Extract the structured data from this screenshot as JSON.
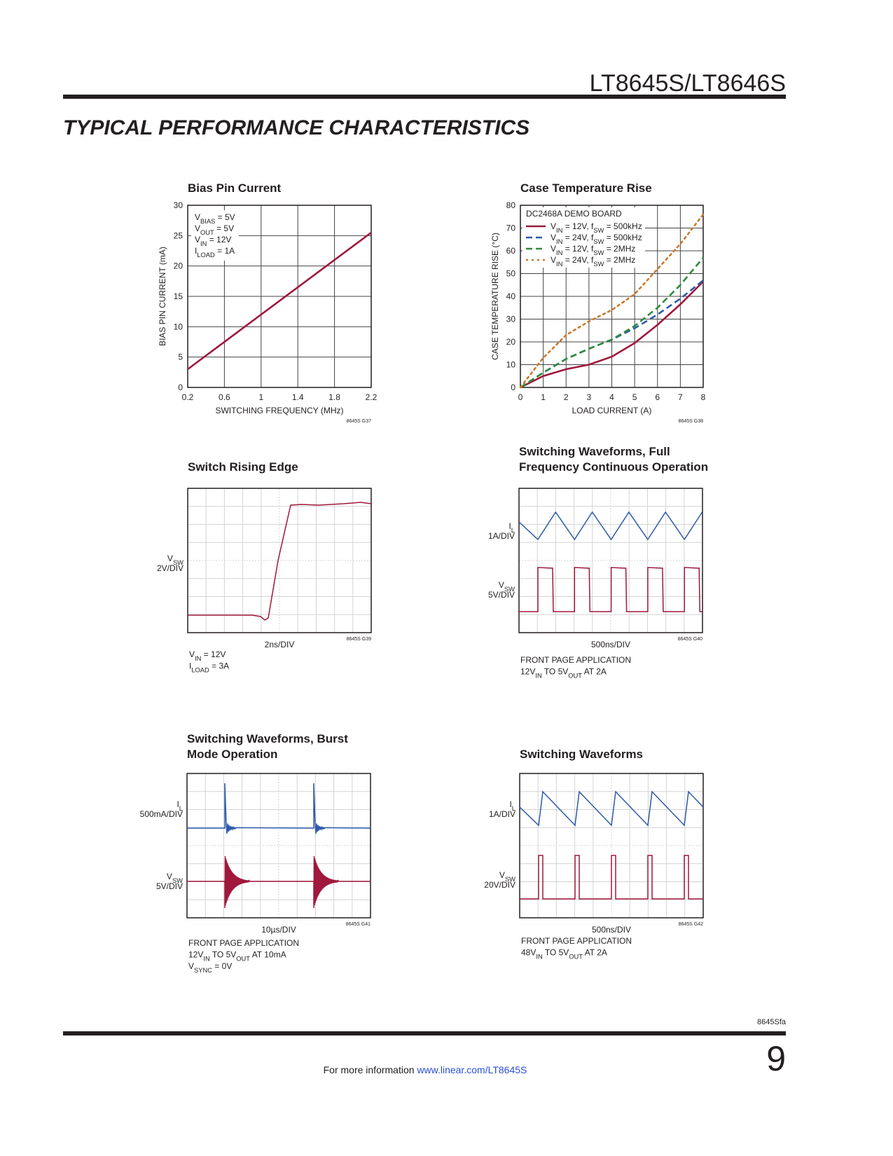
{
  "header": {
    "part": "LT8645S/LT8646S",
    "section": "TYPICAL PERFORMANCE CHARACTERISTICS"
  },
  "chart_data": [
    {
      "type": "line",
      "title": "Bias Pin Current",
      "x_label": "SWITCHING FREQUENCY (MHz)",
      "y_label": "BIAS PIN CURRENT (mA)",
      "code": "8645S G37",
      "xlim": [
        0.2,
        2.2
      ],
      "xticks": [
        0.2,
        0.6,
        1,
        1.4,
        1.8,
        2.2
      ],
      "ylim": [
        0,
        30
      ],
      "yticks": [
        0,
        5,
        10,
        15,
        20,
        25,
        30
      ],
      "grid": true,
      "x": [
        0.2,
        2.2
      ],
      "annotations": [
        [
          "V",
          "BIAS",
          " = 5V"
        ],
        [
          "V",
          "OUT",
          " = 5V"
        ],
        [
          "V",
          "IN",
          " = 12V"
        ],
        [
          "I",
          "LOAD",
          " = 1A"
        ]
      ],
      "series": [
        {
          "color": "#a0183c",
          "dash": "solid",
          "values": [
            3,
            25.5
          ]
        }
      ]
    },
    {
      "type": "line",
      "title": "Case Temperature Rise",
      "x_label": "LOAD CURRENT (A)",
      "y_label": "CASE TEMPERATURE RISE (°C)",
      "code": "8645S G38",
      "xlim": [
        0,
        8
      ],
      "xticks": [
        0,
        1,
        2,
        3,
        4,
        5,
        6,
        7,
        8
      ],
      "ylim": [
        0,
        80
      ],
      "yticks": [
        0,
        10,
        20,
        30,
        40,
        50,
        60,
        70,
        80
      ],
      "grid": true,
      "legend_title": "DC2468A DEMO BOARD",
      "legend": "upper-left",
      "x": [
        0,
        1,
        2,
        3,
        4,
        5,
        6,
        7,
        8
      ],
      "series": [
        {
          "name": [
            "V",
            "IN",
            " = 12V, f",
            "SW",
            " = 500kHz"
          ],
          "color": "#a0183c",
          "dash": "solid",
          "values": [
            0,
            5,
            8,
            10,
            13.5,
            19.5,
            27.5,
            36.5,
            46.5
          ]
        },
        {
          "name": [
            "V",
            "IN",
            " = 24V, f",
            "SW",
            " = 500kHz"
          ],
          "color": "#2f5aa8",
          "dash": "dashed",
          "values": [
            0,
            6.5,
            12.5,
            17,
            21,
            26,
            32,
            39,
            47
          ]
        },
        {
          "name": [
            "V",
            "IN",
            " = 12V, f",
            "SW",
            " = 2MHz"
          ],
          "color": "#2e8b3e",
          "dash": "dashed",
          "values": [
            0,
            6.5,
            12.5,
            17,
            21,
            27,
            35,
            45,
            57
          ]
        },
        {
          "name": [
            "V",
            "IN",
            " = 24V, f",
            "SW",
            " = 2MHz"
          ],
          "color": "#c87a2a",
          "dash": "dotted",
          "values": [
            0,
            13,
            23,
            29,
            34,
            41,
            52,
            63,
            76
          ]
        }
      ]
    }
  ],
  "scopes": [
    {
      "title": [
        "Switch Rising Edge"
      ],
      "channels": [
        {
          "label": [
            "V",
            "SW"
          ],
          "scale": "2V/DIV"
        }
      ],
      "timebase": "2ns/DIV",
      "code": "8645S G39",
      "notes": [
        [
          "V",
          "IN",
          " = 12V"
        ],
        [
          "I",
          "LOAD",
          " = 3A"
        ]
      ]
    },
    {
      "title": [
        "Switching Waveforms, Full",
        "Frequency Continuous Operation"
      ],
      "channels": [
        {
          "label": [
            "I",
            "L"
          ],
          "scale": "1A/DIV"
        },
        {
          "label": [
            "V",
            "SW"
          ],
          "scale": "5V/DIV"
        }
      ],
      "timebase": "500ns/DIV",
      "code": "8645S G40",
      "notes": [
        [
          "FRONT PAGE APPLICATION"
        ],
        [
          "12V",
          "IN",
          " TO 5V",
          "OUT",
          " AT 2A"
        ]
      ]
    },
    {
      "title": [
        "Switching Waveforms, Burst",
        "Mode Operation"
      ],
      "channels": [
        {
          "label": [
            "I",
            "L"
          ],
          "scale": "500mA/DIV"
        },
        {
          "label": [
            "V",
            "SW"
          ],
          "scale": "5V/DIV"
        }
      ],
      "timebase": "10µs/DIV",
      "code": "8645S G41",
      "notes": [
        [
          "FRONT PAGE APPLICATION"
        ],
        [
          "12V",
          "IN",
          " TO 5V",
          "OUT",
          " AT 10mA"
        ],
        [
          "V",
          "SYNC",
          " = 0V"
        ]
      ]
    },
    {
      "title": [
        "Switching Waveforms"
      ],
      "channels": [
        {
          "label": [
            "I",
            "L"
          ],
          "scale": "1A/DIV"
        },
        {
          "label": [
            "V",
            "SW"
          ],
          "scale": "20V/DIV"
        }
      ],
      "timebase": "500ns/DIV",
      "code": "8645S G42",
      "notes": [
        [
          "FRONT PAGE APPLICATION"
        ],
        [
          "48V",
          "IN",
          " TO 5V",
          "OUT",
          " AT 2A"
        ]
      ]
    }
  ],
  "footer": {
    "revision": "8645Sfa",
    "info": "For more information ",
    "link": "www.linear.com/LT8645S",
    "page": "9"
  }
}
